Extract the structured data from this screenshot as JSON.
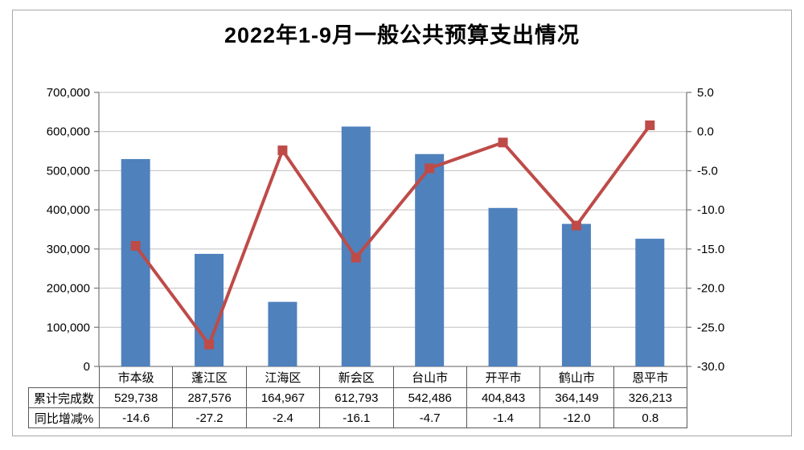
{
  "chart_data": {
    "type": "combo-bar-line",
    "title": "2022年1-9月一般公共预算支出情况",
    "categories": [
      "市本级",
      "蓬江区",
      "江海区",
      "新会区",
      "台山市",
      "开平市",
      "鹤山市",
      "恩平市"
    ],
    "series": [
      {
        "name": "累计完成数",
        "type": "bar",
        "axis": "left",
        "color": "#4F81BD",
        "values": [
          529738,
          287576,
          164967,
          612793,
          542486,
          404843,
          364149,
          326213
        ],
        "display": [
          "529,738",
          "287,576",
          "164,967",
          "612,793",
          "542,486",
          "404,843",
          "364,149",
          "326,213"
        ]
      },
      {
        "name": "同比增减%",
        "type": "line",
        "axis": "right",
        "color": "#BE4B48",
        "values": [
          -14.6,
          -27.2,
          -2.4,
          -16.1,
          -4.7,
          -1.4,
          -12.0,
          0.8
        ],
        "display": [
          "-14.6",
          "-27.2",
          "-2.4",
          "-16.1",
          "-4.7",
          "-1.4",
          "-12.0",
          "0.8"
        ]
      }
    ],
    "left_axis": {
      "min": 0,
      "max": 700000,
      "tick_labels": [
        "0",
        "100,000",
        "200,000",
        "300,000",
        "400,000",
        "500,000",
        "600,000",
        "700,000"
      ]
    },
    "right_axis": {
      "min": -30,
      "max": 5,
      "tick_labels": [
        "-30.0",
        "-25.0",
        "-20.0",
        "-15.0",
        "-10.0",
        "-5.0",
        "0.0",
        "5.0"
      ]
    },
    "legend": "none",
    "grid": true
  },
  "palette": {
    "bar": "#4F81BD",
    "line": "#BE4B48",
    "gridline": "#BFBFBF",
    "axis_line": "#808080",
    "table_border": "#595959",
    "frame_border": "#A6A6A6",
    "text": "#000000"
  }
}
